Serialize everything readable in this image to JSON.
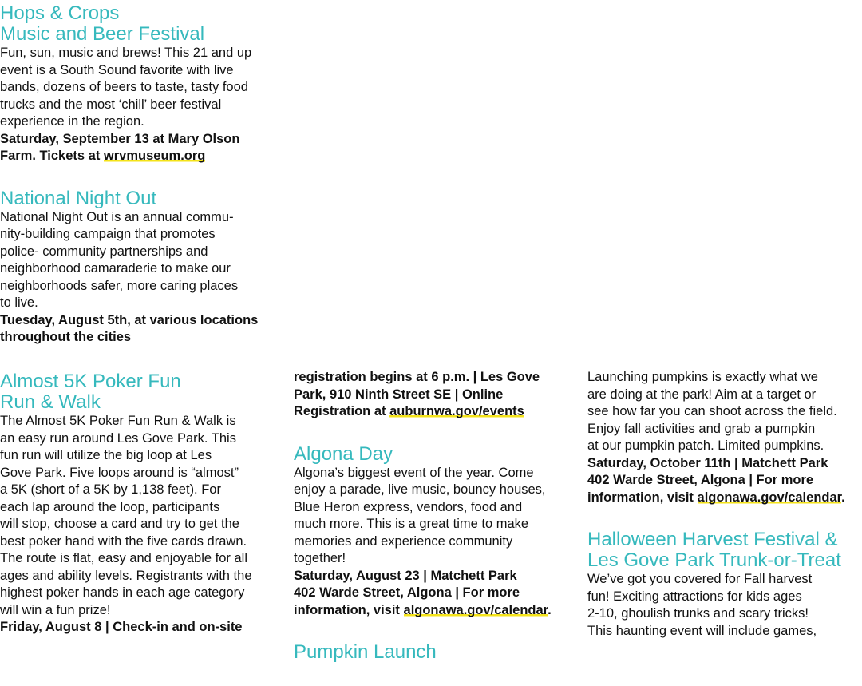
{
  "columns": [
    [
      {
        "title": [
          "Hops & Crops",
          "Music and Beer Festival"
        ],
        "body": [
          "Fun, sun, music and brews! This 21 and up",
          "event is a South Sound favorite with live",
          "bands, dozens of beers to taste, tasty food",
          "trucks and the most ‘chill’ beer festival",
          "experience in the region."
        ],
        "details": [
          "Saturday, September 13 at Mary Olson",
          {
            "text": "Farm. Tickets at ",
            "link": "wrvmuseum.org"
          }
        ]
      },
      {
        "title": [
          "National Night Out"
        ],
        "body": [
          "National Night Out is an annual commu-",
          "nity-building campaign that promotes",
          "police- community partnerships and",
          "neighborhood camaraderie to make our",
          "neighborhoods safer, more caring places",
          "to live."
        ],
        "details": [
          "Tuesday, August 5th, at various locations",
          "throughout the cities"
        ]
      }
    ],
    [
      {
        "title": [
          "Almost 5K Poker Fun",
          "Run & Walk"
        ],
        "body": [
          "The Almost 5K Poker Fun Run & Walk is",
          "an easy run around Les Gove Park. This",
          "fun run will utilize the big loop at Les",
          "Gove Park. Five loops around is “almost”",
          "a 5K (short of a 5K by 1,138 feet). For",
          "each lap around the loop, participants",
          "will stop, choose a card and try to get the",
          "best poker hand with the five cards drawn.",
          "The route is flat, easy and enjoyable for all",
          "ages and ability levels. Registrants with the",
          "highest poker hands in each age category",
          "will win a fun prize!"
        ],
        "details": [
          "Friday, August 8 | Check-in and on-site"
        ]
      }
    ],
    [
      {
        "details": [
          "registration begins at 6 p.m. | Les Gove",
          "Park, 910 Ninth Street SE | Online",
          {
            "text": "Registration at ",
            "link": "auburnwa.gov/events"
          }
        ]
      },
      {
        "title": [
          "Algona Day"
        ],
        "body": [
          "Algona’s biggest event of the year. Come",
          "enjoy a parade, live music, bouncy houses,",
          "Blue Heron express, vendors, food and",
          "much more. This is a great time to make",
          "memories and experience community",
          "together!"
        ],
        "details": [
          "Saturday, August 23 | Matchett Park",
          "402 Warde Street, Algona | For more",
          {
            "text": "information, visit ",
            "link": "algonawa.gov/calendar",
            "after": "."
          }
        ]
      },
      {
        "title": [
          "Pumpkin Launch"
        ]
      }
    ],
    [
      {
        "body": [
          "Launching pumpkins is exactly what we",
          "are doing at the park! Aim at a target or",
          "see how far you can shoot across the field.",
          "Enjoy fall activities and grab a pumpkin",
          "at our pumpkin patch. Limited pumpkins."
        ],
        "details": [
          "Saturday, October 11th | Matchett Park",
          "402 Warde Street, Algona | For more",
          {
            "text": "information, visit ",
            "link": "algonawa.gov/calendar",
            "after": "."
          }
        ]
      },
      {
        "title": [
          "Halloween Harvest Festival &",
          "Les Gove Park Trunk-or-Treat"
        ],
        "body": [
          "We’ve got you covered for Fall harvest",
          "fun! Exciting attractions for kids ages",
          "2-10, ghoulish trunks and scary tricks!",
          "This haunting event will include games,"
        ]
      }
    ]
  ]
}
